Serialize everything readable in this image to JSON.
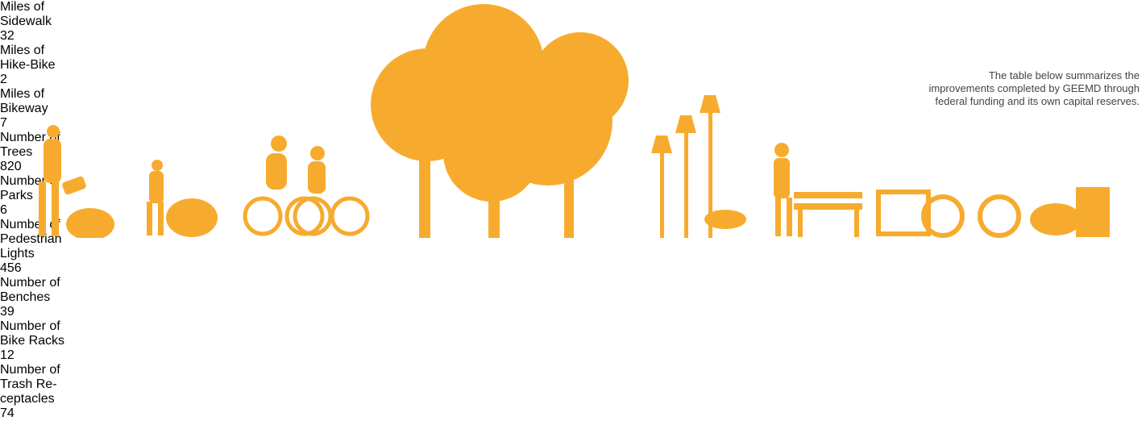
{
  "intro": [
    "The table below summarizes the",
    "improvements completed by GEEMD through",
    "federal funding and its own capital reserves."
  ],
  "items": [
    {
      "label": [
        "Miles of",
        "Sidewalk"
      ],
      "value": "32"
    },
    {
      "label": [
        "Miles of",
        "Hike-Bike"
      ],
      "value": "2"
    },
    {
      "label": [
        "Miles of",
        "Bikeway"
      ],
      "value": "7"
    },
    {
      "label": [
        "Number of",
        "Trees"
      ],
      "value": "820"
    },
    {
      "label": [
        "Number of",
        "Parks"
      ],
      "value": "6"
    },
    {
      "label": [
        "Number of",
        "Pedestrian",
        "Lights"
      ],
      "value": "456"
    },
    {
      "label": [
        "Number of",
        "Benches"
      ],
      "value": "39"
    },
    {
      "label": [
        "Number of",
        "Bike Racks"
      ],
      "value": "12"
    },
    {
      "label": [
        "Number of",
        "Trash Re-",
        "ceptacles"
      ],
      "value": "74"
    }
  ]
}
